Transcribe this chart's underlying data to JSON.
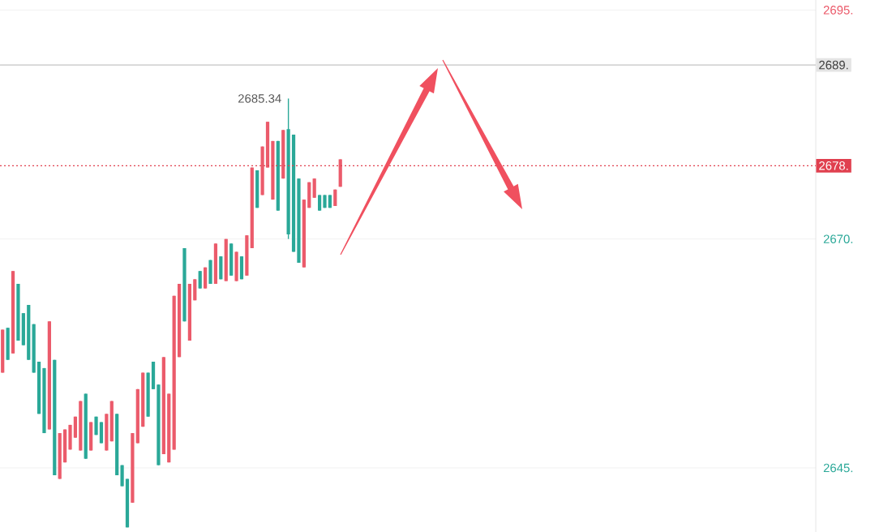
{
  "chart_data": {
    "type": "candlestick",
    "categories": [
      null,
      null,
      null,
      null,
      null,
      null,
      null,
      null,
      null,
      null,
      null,
      null,
      null,
      null,
      null,
      null,
      null,
      null,
      null,
      null,
      null,
      null,
      null,
      null,
      null,
      null,
      null,
      null,
      null,
      null,
      null,
      null,
      null,
      null,
      null,
      null,
      null,
      null,
      null,
      null,
      null,
      null,
      null,
      null,
      null,
      null,
      null,
      null,
      null,
      null,
      null,
      null,
      null,
      null,
      null,
      null,
      null,
      null,
      null,
      null,
      null,
      null,
      null,
      null,
      null,
      null,
      null,
      null,
      null,
      null,
      null,
      null,
      null,
      null,
      null,
      null,
      null,
      null,
      null,
      null,
      null,
      null,
      null,
      null,
      null,
      null,
      null,
      null,
      null,
      null,
      null,
      null,
      null,
      null,
      null,
      null,
      null,
      null,
      null,
      null,
      null,
      null,
      null,
      null,
      null,
      null,
      null,
      null,
      null,
      null,
      null,
      null,
      null,
      null,
      null,
      null,
      null,
      null,
      null,
      null,
      null,
      null,
      null,
      null,
      null,
      null,
      null,
      null,
      null,
      null,
      null,
      null,
      null,
      null,
      null,
      null,
      null,
      null,
      null,
      null,
      null,
      null,
      null,
      null,
      null,
      null,
      null,
      null,
      null,
      null,
      null,
      null,
      null,
      null,
      null,
      null,
      null
    ],
    "ohlc": [
      [
        2655.4,
        2660.1,
        2655.4,
        2660.1
      ],
      [
        2660.3,
        2660.3,
        2656.8,
        2656.8
      ],
      [
        2657.5,
        2666.5,
        2657.5,
        2666.5
      ],
      [
        2665.1,
        2665.1,
        2658.9,
        2658.9
      ],
      [
        2661.9,
        2661.9,
        2658.4,
        2658.4
      ],
      [
        2662.8,
        2662.8,
        2656.8,
        2656.8
      ],
      [
        2660.7,
        2660.7,
        2655.4,
        2655.4
      ],
      [
        2656.6,
        2656.6,
        2650.9,
        2650.9
      ],
      [
        2655.9,
        2655.9,
        2648.8,
        2648.8
      ],
      [
        2649.2,
        2661.0,
        2649.2,
        2661.0
      ],
      [
        2656.8,
        2656.8,
        2644.2,
        2644.2
      ],
      [
        2643.8,
        2648.8,
        2643.8,
        2648.8
      ],
      [
        2645.6,
        2649.2,
        2645.6,
        2649.2
      ],
      [
        2647.0,
        2649.7,
        2647.0,
        2649.7
      ],
      [
        2648.3,
        2650.6,
        2648.3,
        2650.6
      ],
      [
        2646.9,
        2652.3,
        2646.9,
        2652.3
      ],
      [
        2653.1,
        2653.1,
        2646.0,
        2646.0
      ],
      [
        2646.9,
        2650.0,
        2646.9,
        2650.0
      ],
      [
        2650.6,
        2650.6,
        2648.6,
        2648.6
      ],
      [
        2650.0,
        2650.0,
        2647.7,
        2647.7
      ],
      [
        2646.9,
        2650.9,
        2646.9,
        2650.9
      ],
      [
        2647.9,
        2652.3,
        2647.9,
        2652.3
      ],
      [
        2650.9,
        2650.9,
        2644.2,
        2644.2
      ],
      [
        2645.3,
        2645.3,
        2643.0,
        2643.0
      ],
      [
        2643.8,
        2643.8,
        2638.5,
        2638.5
      ],
      [
        2641.2,
        2648.8,
        2641.2,
        2648.8
      ],
      [
        2647.7,
        2653.6,
        2647.7,
        2653.6
      ],
      [
        2649.5,
        2655.4,
        2649.5,
        2655.4
      ],
      [
        2655.4,
        2655.4,
        2650.6,
        2650.6
      ],
      [
        2656.6,
        2656.6,
        2653.6,
        2653.6
      ],
      [
        2654.1,
        2654.1,
        2645.3,
        2645.3
      ],
      [
        2646.5,
        2657.1,
        2646.5,
        2657.1
      ],
      [
        2645.6,
        2653.1,
        2645.6,
        2653.1
      ],
      [
        2647.0,
        2663.8,
        2647.0,
        2663.8
      ],
      [
        2657.1,
        2665.1,
        2657.1,
        2665.1
      ],
      [
        2669.0,
        2669.0,
        2661.0,
        2661.0
      ],
      [
        2658.9,
        2665.1,
        2658.9,
        2665.1
      ],
      [
        2663.3,
        2665.6,
        2663.3,
        2665.6
      ],
      [
        2666.5,
        2666.5,
        2664.6,
        2664.6
      ],
      [
        2664.6,
        2666.9,
        2664.6,
        2666.9
      ],
      [
        2667.7,
        2667.7,
        2665.1,
        2665.1
      ],
      [
        2665.1,
        2669.5,
        2665.1,
        2669.5
      ],
      [
        2668.1,
        2668.1,
        2665.6,
        2665.6
      ],
      [
        2665.4,
        2670.0,
        2665.4,
        2670.0
      ],
      [
        2669.5,
        2669.5,
        2666.0,
        2666.0
      ],
      [
        2665.4,
        2668.6,
        2665.4,
        2668.6
      ],
      [
        2668.1,
        2668.1,
        2665.6,
        2665.6
      ],
      [
        2666.0,
        2670.4,
        2666.0,
        2670.4
      ],
      [
        2669.0,
        2677.8,
        2669.0,
        2677.8
      ],
      [
        2677.5,
        2677.5,
        2673.4,
        2673.4
      ],
      [
        2674.8,
        2680.1,
        2674.8,
        2680.1
      ],
      [
        2677.8,
        2682.8,
        2677.8,
        2682.8
      ],
      [
        2674.3,
        2680.7,
        2674.3,
        2680.7
      ],
      [
        2680.7,
        2680.7,
        2673.1,
        2673.1
      ],
      [
        2676.6,
        2681.9,
        2676.6,
        2681.9
      ],
      [
        2682.0,
        2685.34,
        2670.0,
        2670.5
      ],
      [
        2681.4,
        2681.4,
        2668.6,
        2668.6
      ],
      [
        2676.6,
        2676.6,
        2667.4,
        2667.4
      ],
      [
        2666.9,
        2674.3,
        2666.9,
        2674.3
      ],
      [
        2673.4,
        2676.2,
        2673.4,
        2676.2
      ],
      [
        2674.5,
        2676.6,
        2674.5,
        2676.6
      ],
      [
        2674.8,
        2674.8,
        2673.1,
        2673.1
      ],
      [
        2674.8,
        2674.8,
        2673.4,
        2673.4
      ],
      [
        2674.8,
        2674.8,
        2673.4,
        2673.4
      ],
      [
        2673.6,
        2675.4,
        2673.6,
        2675.4
      ],
      [
        2675.7,
        2678.7,
        2675.7,
        2678.7
      ],
      null,
      null,
      null,
      null,
      null,
      null,
      null,
      null,
      null,
      null,
      null,
      null,
      null,
      null,
      null,
      null,
      null,
      null,
      null,
      null,
      null,
      null,
      null,
      null,
      null,
      null,
      null,
      null,
      null,
      null,
      null,
      null,
      null,
      null,
      null,
      null,
      null,
      null,
      null,
      null,
      null,
      null,
      null,
      null,
      null,
      null,
      null,
      null,
      null,
      null,
      null,
      null,
      null,
      null,
      null,
      null,
      null,
      null,
      null,
      null,
      null,
      null,
      null,
      null,
      null,
      null,
      null,
      null,
      null,
      null,
      null,
      null,
      null,
      null,
      null,
      null,
      null,
      null,
      null,
      null,
      null,
      null,
      null,
      null,
      null,
      null,
      null,
      null,
      null,
      null,
      null
    ],
    "ylim": [
      2638,
      2696.1
    ],
    "yticks": [
      {
        "value": 2695,
        "label": "2695."
      },
      {
        "value": 2670,
        "label": "2670."
      },
      {
        "value": 2645,
        "label": "2645."
      }
    ],
    "grid": "y",
    "ref_lines": [
      {
        "axis": "y",
        "value": 2689,
        "label": "2689.",
        "color": "#c4c4c4",
        "line_style": "solid"
      },
      {
        "axis": "y",
        "value": 2678,
        "label": "2678.",
        "color": "#e0404f",
        "line_style": "dotted"
      }
    ],
    "annotations": [
      "2685.34"
    ]
  }
}
